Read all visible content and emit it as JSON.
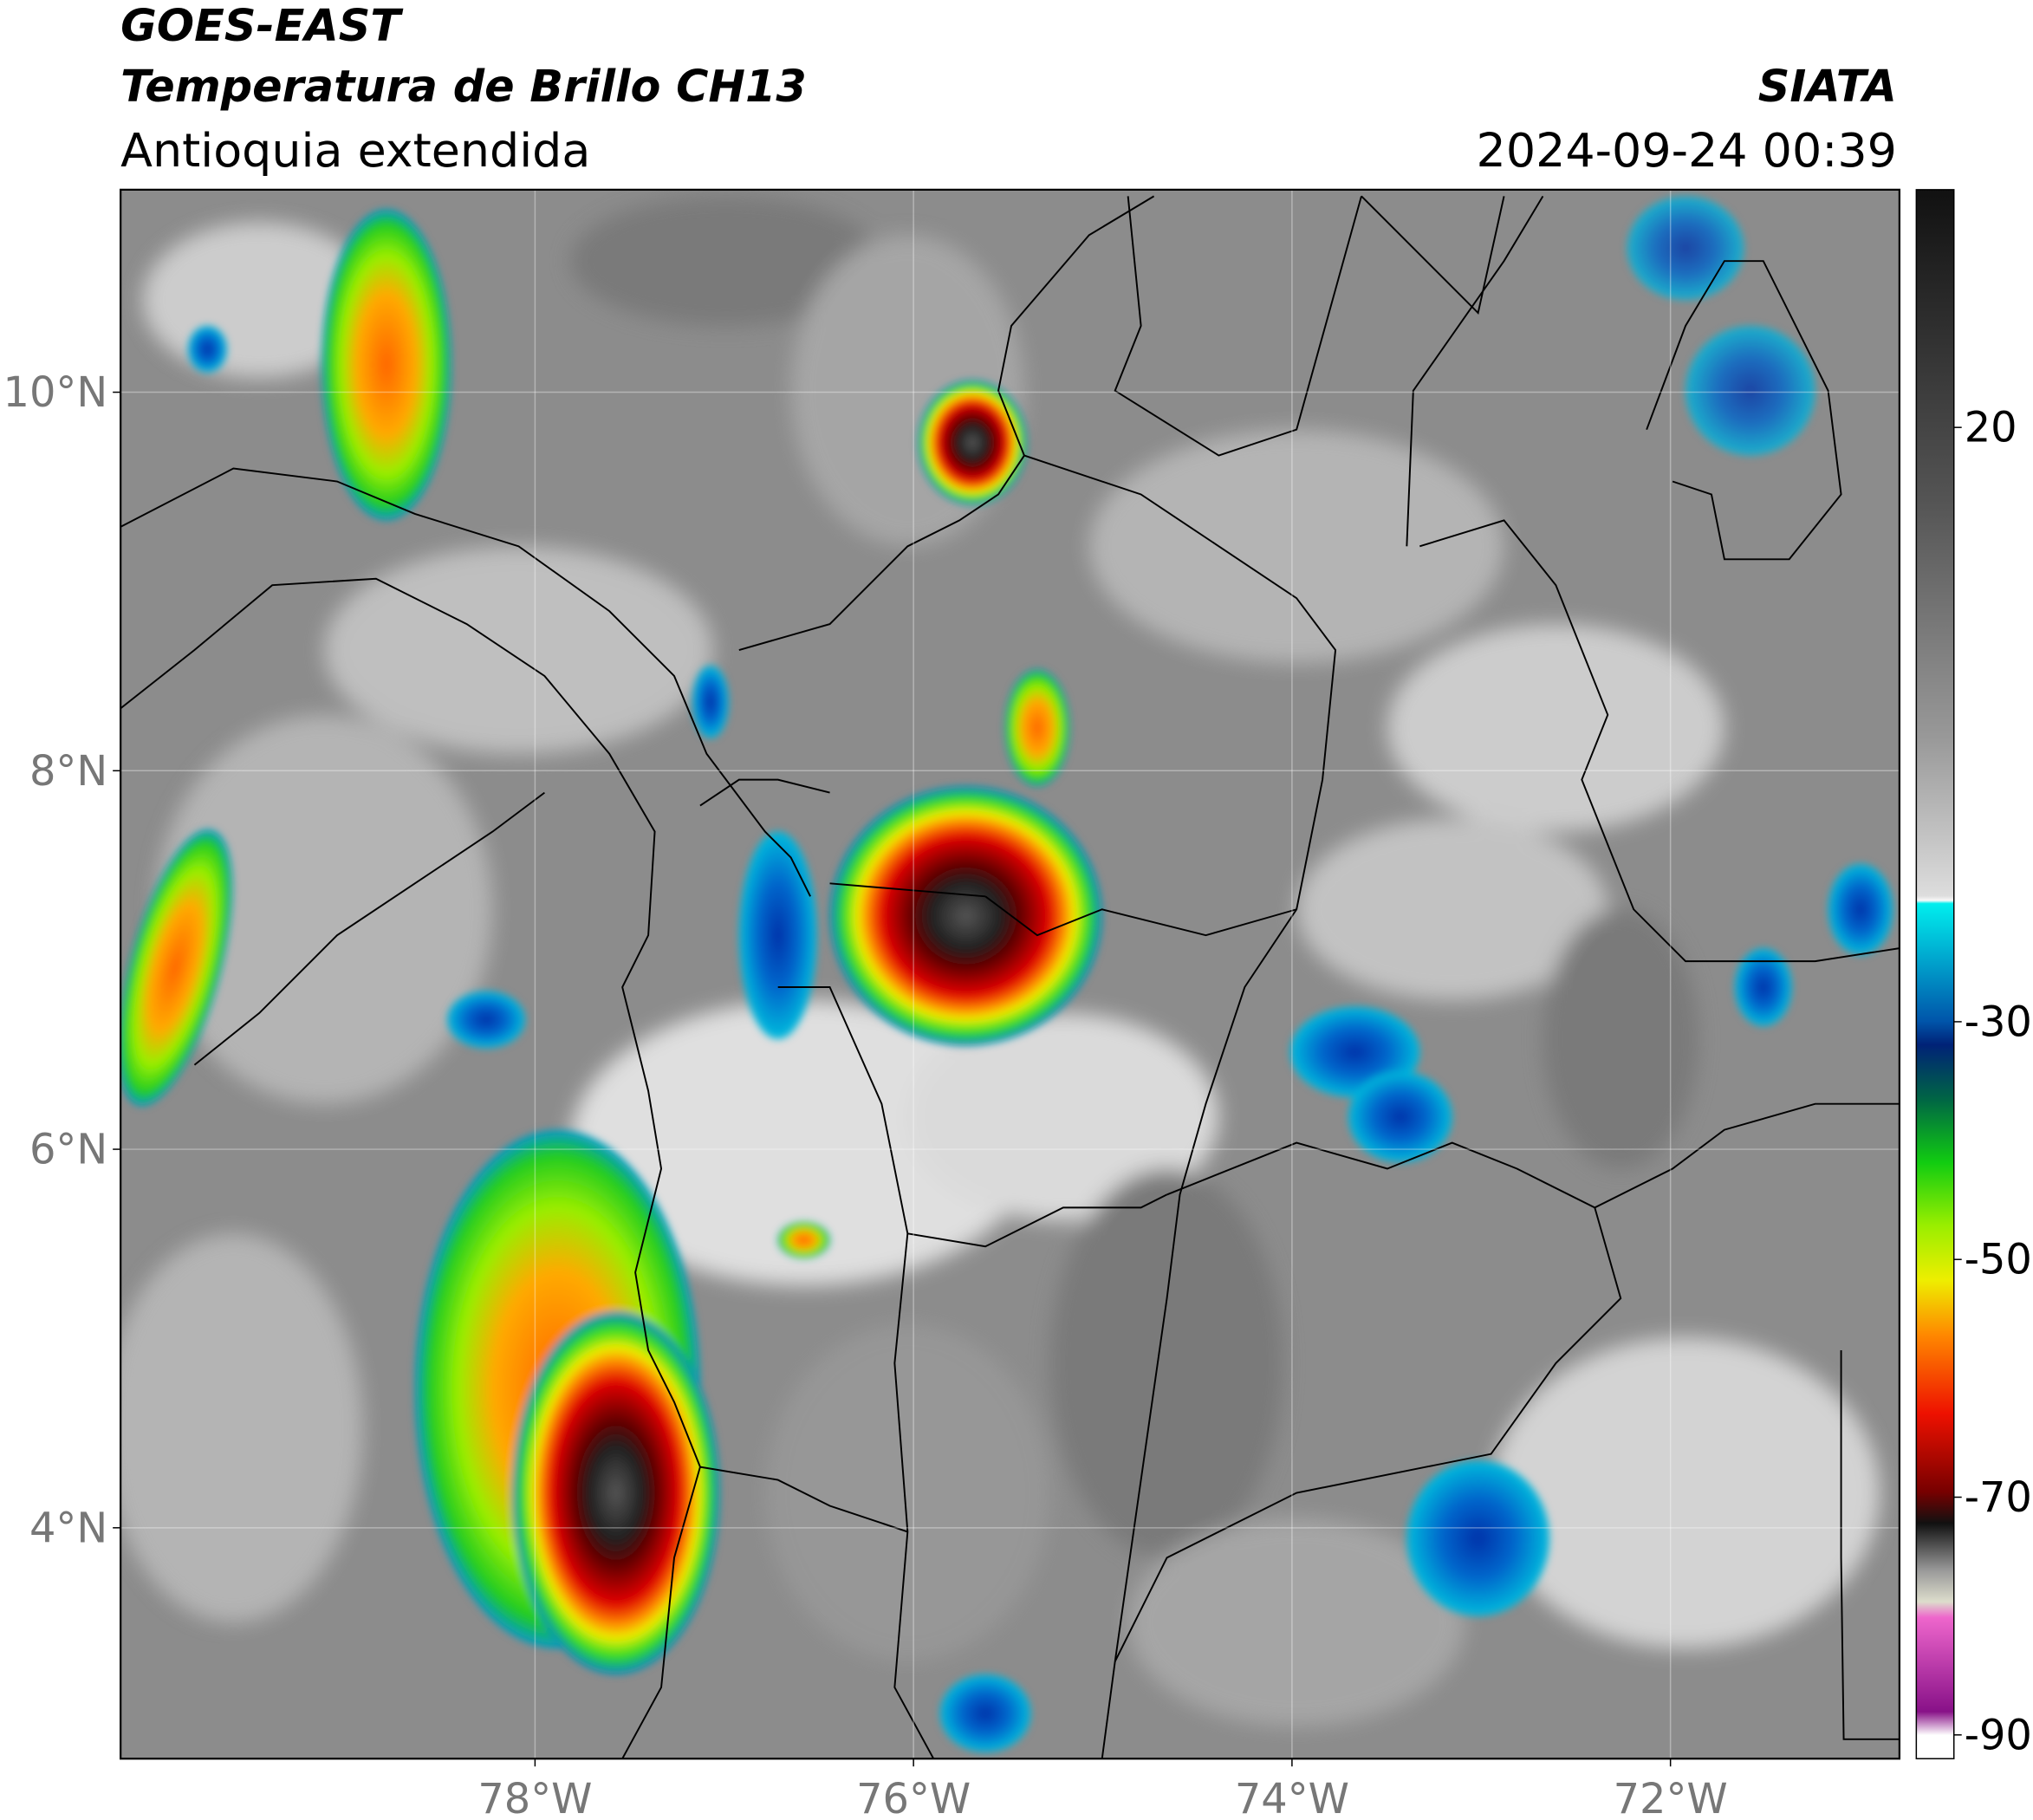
{
  "header": {
    "satellite": "GOES-EAST",
    "product": "Temperatura de Brillo CH13",
    "region": "Antioquia extendida",
    "agency": "SIATA",
    "datetime": "2024-09-24 00:39"
  },
  "map": {
    "lon_range": [
      -80.19,
      -70.79
    ],
    "lat_range": [
      2.78,
      11.07
    ],
    "grid": true,
    "lon_ticks": [
      {
        "value": -78,
        "label": "78°W"
      },
      {
        "value": -76,
        "label": "76°W"
      },
      {
        "value": -74,
        "label": "74°W"
      },
      {
        "value": -72,
        "label": "72°W"
      }
    ],
    "lat_ticks": [
      {
        "value": 10,
        "label": "10°N"
      },
      {
        "value": 8,
        "label": "8°N"
      },
      {
        "value": 6,
        "label": "6°N"
      },
      {
        "value": 4,
        "label": "4°N"
      }
    ]
  },
  "colorbar": {
    "range": [
      -92,
      40
    ],
    "ticks": [
      20,
      -30,
      -50,
      -70,
      -90
    ]
  }
}
